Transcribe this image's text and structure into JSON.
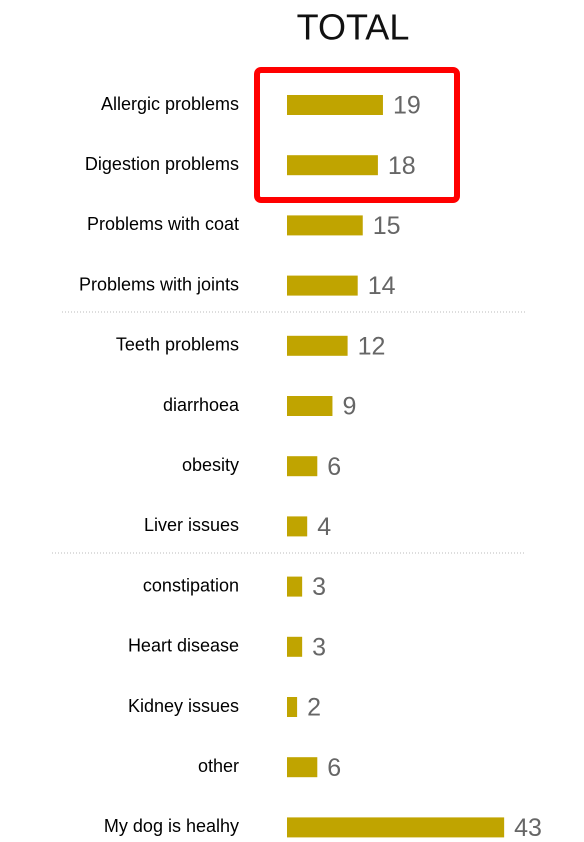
{
  "chart_data": {
    "type": "bar",
    "orientation": "horizontal",
    "title": "TOTAL",
    "categories": [
      "Allergic problems",
      "Digestion problems",
      "Problems with coat",
      "Problems with joints",
      "Teeth problems",
      "diarrhoea",
      "obesity",
      "Liver issues",
      "constipation",
      "Heart disease",
      "Kidney issues",
      "other",
      "My dog is healhy"
    ],
    "values": [
      19,
      18,
      15,
      14,
      12,
      9,
      6,
      4,
      3,
      3,
      2,
      6,
      43
    ],
    "color": "#c0a400"
  }
}
